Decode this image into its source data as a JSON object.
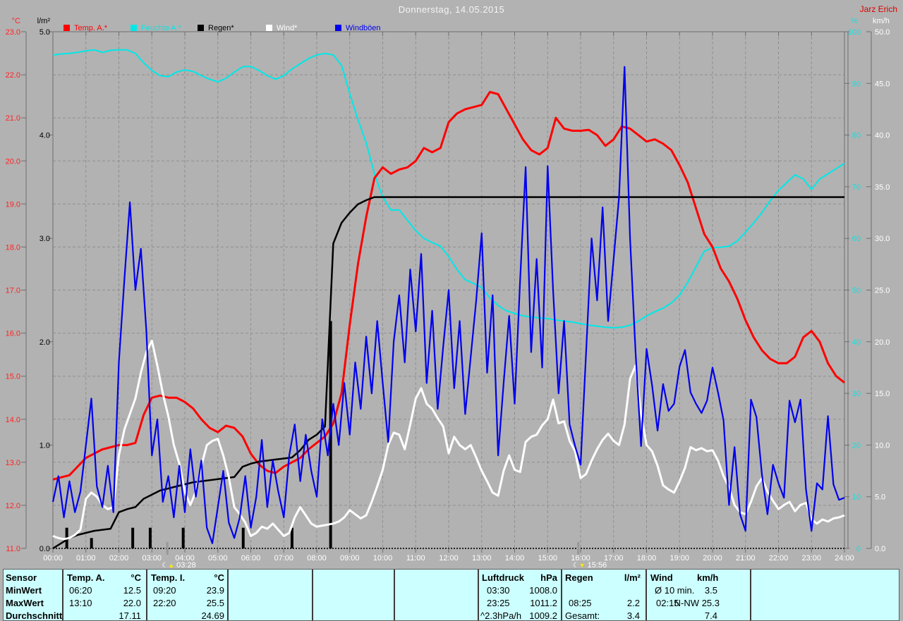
{
  "header": {
    "title": "Donnerstag, 14.05.2015",
    "author": "Jarz Erich"
  },
  "legend": {
    "items": [
      {
        "key": "temp-a",
        "label": "Temp. A.*",
        "color": "#ff0000"
      },
      {
        "key": "feuchte-a",
        "label": "Feuchte A.*",
        "color": "#00e8e8"
      },
      {
        "key": "regen",
        "label": "Regen*",
        "color": "#000000"
      },
      {
        "key": "wind",
        "label": "Wind*",
        "color": "#ffffff"
      },
      {
        "key": "windboeen",
        "label": "Windböen",
        "color": "#0000ee"
      }
    ]
  },
  "axis_headers": {
    "temp": "°C",
    "rain": "l/m²",
    "humidity": "%",
    "wind": "km/h"
  },
  "chart_data": {
    "type": "line",
    "title": "Donnerstag, 14.05.2015",
    "x_axis": {
      "unit": "h",
      "start": 0,
      "end": 24,
      "tick_labels": [
        "00:00",
        "01:00",
        "02:00",
        "03:00",
        "04:00",
        "05:00",
        "06:00",
        "07:00",
        "08:00",
        "09:00",
        "10:00",
        "11:00",
        "12:00",
        "13:00",
        "14:00",
        "15:00",
        "16:00",
        "17:00",
        "18:00",
        "19:00",
        "20:00",
        "21:00",
        "22:00",
        "23:00",
        "24:00"
      ]
    },
    "axes": {
      "temp": {
        "label": "°C",
        "min": 11,
        "max": 23,
        "tick_step": 1,
        "decimals": 1,
        "color": "#ff2222"
      },
      "rain": {
        "label": "l/m²",
        "min": 0,
        "max": 5,
        "tick_step": 1,
        "decimals": 1,
        "color": "#000000"
      },
      "humidity": {
        "label": "%",
        "min": 0,
        "max": 100,
        "tick_step": 10,
        "decimals": 0,
        "color": "#00e8e8"
      },
      "wind": {
        "label": "km/h",
        "min": 0,
        "max": 50,
        "tick_step": 5,
        "decimals": 1,
        "color": "#ffffff"
      }
    },
    "grid": {
      "vertical_every_h": 1,
      "horizontal_every_temp_deg": 1
    },
    "series": [
      {
        "key": "temp-a",
        "name": "Temp. A.",
        "unit": "°C",
        "axis": "temp",
        "color": "#ff0000",
        "interval_min": 15,
        "values": [
          12.6,
          12.65,
          12.7,
          12.9,
          13.1,
          13.2,
          13.3,
          13.35,
          13.4,
          13.4,
          13.45,
          14.1,
          14.5,
          14.55,
          14.5,
          14.5,
          14.4,
          14.25,
          14.0,
          13.8,
          13.7,
          13.85,
          13.8,
          13.6,
          13.2,
          12.95,
          12.8,
          12.75,
          12.9,
          13.0,
          13.1,
          13.3,
          13.45,
          13.6,
          13.9,
          14.6,
          16.2,
          17.6,
          18.7,
          19.6,
          19.85,
          19.7,
          19.8,
          19.85,
          20.0,
          20.3,
          20.2,
          20.3,
          20.9,
          21.1,
          21.2,
          21.25,
          21.3,
          21.6,
          21.55,
          21.2,
          20.85,
          20.5,
          20.25,
          20.15,
          20.3,
          21.0,
          20.75,
          20.7,
          20.7,
          20.72,
          20.6,
          20.35,
          20.5,
          20.8,
          20.75,
          20.6,
          20.45,
          20.5,
          20.4,
          20.25,
          19.9,
          19.5,
          18.9,
          18.3,
          18.0,
          17.5,
          17.2,
          16.8,
          16.3,
          15.9,
          15.6,
          15.4,
          15.3,
          15.3,
          15.45,
          15.9,
          16.05,
          15.8,
          15.3,
          15.0,
          14.85
        ]
      },
      {
        "key": "feuchte-a",
        "name": "Feuchte A.",
        "unit": "%",
        "axis": "humidity",
        "color": "#00e8e8",
        "interval_min": 15,
        "values": [
          95.5,
          95.7,
          95.8,
          96.0,
          96.3,
          96.5,
          96.0,
          96.4,
          96.5,
          96.5,
          95.8,
          94.0,
          92.5,
          91.5,
          91.3,
          92.2,
          92.6,
          92.3,
          91.5,
          90.8,
          90.3,
          91.0,
          92.2,
          93.2,
          93.3,
          92.5,
          91.5,
          90.8,
          91.5,
          92.8,
          93.8,
          94.8,
          95.5,
          95.8,
          95.5,
          93.5,
          88.0,
          83.0,
          78.5,
          72.5,
          68.0,
          65.5,
          65.5,
          63.5,
          61.5,
          60.0,
          59.2,
          58.5,
          56.5,
          54.0,
          52.0,
          51.3,
          50.5,
          48.5,
          47.0,
          46.0,
          45.5,
          45.0,
          44.8,
          44.6,
          44.5,
          44.2,
          44.0,
          43.8,
          43.5,
          43.2,
          43.0,
          42.8,
          42.7,
          42.8,
          43.2,
          44.0,
          45.0,
          45.8,
          46.5,
          47.5,
          49.0,
          51.5,
          54.5,
          57.5,
          58.2,
          58.3,
          58.5,
          59.5,
          61.2,
          63.0,
          65.0,
          67.3,
          69.3,
          70.8,
          72.3,
          71.5,
          69.5,
          71.5,
          72.5,
          73.5,
          74.5
        ]
      },
      {
        "key": "regen-summe",
        "name": "Regen (Summe)",
        "unit": "l/m²",
        "axis": "rain",
        "color": "#000000",
        "interval_min": 15,
        "values": [
          0.0,
          0.05,
          0.1,
          0.13,
          0.15,
          0.17,
          0.18,
          0.19,
          0.35,
          0.38,
          0.4,
          0.48,
          0.52,
          0.56,
          0.58,
          0.6,
          0.62,
          0.64,
          0.65,
          0.66,
          0.67,
          0.68,
          0.69,
          0.79,
          0.82,
          0.84,
          0.85,
          0.86,
          0.87,
          0.88,
          0.95,
          1.05,
          1.1,
          1.18,
          2.95,
          3.15,
          3.25,
          3.33,
          3.37,
          3.4,
          3.4,
          3.4,
          3.4,
          3.4,
          3.4,
          3.4,
          3.4,
          3.4,
          3.4,
          3.4,
          3.4,
          3.4,
          3.4,
          3.4,
          3.4,
          3.4,
          3.4,
          3.4,
          3.4,
          3.4,
          3.4,
          3.4,
          3.4,
          3.4,
          3.4,
          3.4,
          3.4,
          3.4,
          3.4,
          3.4,
          3.4,
          3.4,
          3.4,
          3.4,
          3.4,
          3.4,
          3.4,
          3.4,
          3.4,
          3.4,
          3.4,
          3.4,
          3.4,
          3.4,
          3.4,
          3.4,
          3.4,
          3.4,
          3.4,
          3.4,
          3.4,
          3.4,
          3.4,
          3.4,
          3.4,
          3.4,
          3.4
        ]
      },
      {
        "key": "wind",
        "name": "Wind",
        "unit": "km/h",
        "axis": "wind",
        "color": "#ffffff",
        "interval_min": 10,
        "values": [
          1.2,
          1.0,
          0.9,
          1.0,
          1.3,
          1.8,
          4.8,
          5.4,
          5.0,
          4.2,
          3.8,
          4.0,
          9.0,
          11.5,
          13.0,
          14.5,
          17.0,
          19.0,
          20.1,
          17.7,
          15.0,
          12.8,
          10.0,
          8.2,
          5.5,
          4.2,
          5.5,
          8.0,
          10.0,
          10.4,
          10.6,
          9.0,
          6.9,
          4.0,
          3.3,
          2.5,
          1.2,
          1.5,
          2.1,
          1.9,
          2.4,
          1.8,
          1.2,
          1.5,
          3.0,
          4.0,
          3.2,
          2.4,
          2.1,
          2.2,
          2.3,
          2.4,
          2.6,
          3.0,
          3.7,
          3.3,
          2.9,
          3.2,
          4.5,
          6.0,
          7.6,
          10.0,
          11.2,
          11.0,
          9.6,
          12.0,
          14.5,
          15.5,
          14.0,
          13.5,
          12.6,
          11.8,
          9.2,
          10.8,
          10.0,
          9.6,
          10.0,
          8.8,
          7.5,
          6.5,
          5.4,
          5.1,
          7.5,
          9.0,
          7.6,
          7.4,
          10.3,
          10.8,
          11.0,
          11.9,
          12.5,
          14.4,
          12.1,
          12.3,
          10.4,
          9.4,
          6.8,
          7.2,
          8.5,
          9.6,
          10.5,
          11.1,
          10.4,
          10.0,
          12.0,
          16.4,
          17.7,
          13.0,
          10.0,
          9.4,
          8.0,
          6.1,
          5.7,
          5.4,
          6.5,
          7.8,
          9.8,
          9.5,
          9.7,
          9.4,
          9.5,
          8.5,
          7.0,
          5.9,
          4.2,
          3.5,
          3.3,
          4.5,
          6.0,
          6.8,
          5.5,
          4.6,
          3.8,
          4.2,
          4.5,
          3.6,
          4.2,
          4.4,
          2.8,
          2.4,
          2.8,
          2.6,
          2.9,
          3.0,
          3.2
        ]
      },
      {
        "key": "windboeen",
        "name": "Windböen",
        "unit": "km/h",
        "axis": "wind",
        "color": "#0000ee",
        "interval_min": 10,
        "values": [
          4.5,
          7.0,
          3.0,
          6.5,
          3.5,
          5.5,
          10.0,
          14.5,
          6.0,
          4.0,
          8.0,
          3.5,
          18.0,
          26.0,
          33.5,
          25.0,
          29.0,
          21.0,
          9.0,
          12.5,
          4.5,
          7.0,
          3.0,
          8.0,
          3.5,
          9.6,
          5.0,
          8.5,
          2.0,
          0.5,
          4.0,
          7.5,
          2.5,
          1.0,
          3.0,
          7.0,
          2.0,
          5.0,
          10.5,
          4.0,
          8.5,
          5.5,
          3.0,
          9.0,
          12.0,
          6.5,
          11.0,
          7.5,
          5.0,
          12.5,
          9.0,
          14.0,
          10.0,
          16.0,
          11.0,
          18.0,
          13.5,
          20.5,
          15.0,
          22.0,
          16.0,
          10.3,
          20.0,
          24.5,
          18.0,
          27.0,
          21.0,
          28.5,
          16.0,
          23.0,
          13.5,
          19.5,
          25.0,
          15.5,
          22.0,
          13.0,
          18.5,
          24.0,
          30.5,
          17.0,
          24.5,
          9.0,
          16.0,
          22.5,
          14.0,
          26.0,
          36.9,
          19.0,
          28.0,
          17.5,
          37.0,
          25.0,
          15.0,
          22.0,
          12.0,
          9.9,
          8.1,
          19.0,
          30.0,
          24.0,
          33.0,
          22.0,
          28.0,
          34.0,
          46.6,
          30.0,
          19.0,
          9.9,
          19.3,
          15.8,
          11.4,
          15.9,
          13.3,
          14.0,
          17.6,
          19.2,
          15.1,
          14.0,
          13.1,
          14.3,
          17.5,
          15.1,
          12.4,
          4.2,
          9.8,
          3.3,
          1.7,
          14.4,
          12.7,
          7.1,
          3.3,
          8.1,
          6.3,
          4.9,
          14.3,
          12.2,
          14.4,
          5.7,
          1.7,
          6.3,
          5.7,
          12.8,
          6.2,
          4.7,
          4.9
        ]
      }
    ],
    "rain_bars": {
      "axis": "rain",
      "color": "#000000",
      "unit": "l/m²",
      "points": [
        [
          0.42,
          0.2
        ],
        [
          1.17,
          0.1
        ],
        [
          2.42,
          0.2
        ],
        [
          2.95,
          0.2
        ],
        [
          3.95,
          0.2
        ],
        [
          5.77,
          0.2
        ],
        [
          7.25,
          0.2
        ],
        [
          8.42,
          2.2
        ]
      ]
    },
    "markers": [
      {
        "label": "03:28",
        "hour": 3.47,
        "type": "moonrise"
      },
      {
        "label": "15:56",
        "hour": 15.93,
        "type": "moonset"
      }
    ]
  },
  "table": {
    "row_labels": [
      "Sensor",
      "MinWert",
      "MaxWert",
      "Durchschnitt"
    ],
    "temp_a": {
      "name": "Temp. A.",
      "unit": "°C",
      "min_time": "06:20",
      "min": "12.5",
      "max_time": "13:10",
      "max": "22.0",
      "avg": "17.11"
    },
    "temp_i": {
      "name": "Temp. I.",
      "unit": "°C",
      "min_time": "09:20",
      "min": "23.9",
      "max_time": "22:20",
      "max": "25.5",
      "avg": "24.69"
    },
    "luftdruck": {
      "name": "Luftdruck",
      "unit": "hPa",
      "min_time": "03:30",
      "min": "1008.0",
      "max_time": "23:25",
      "max": "1011.2",
      "avg_label": "^2.3hPa/h",
      "avg": "1009.2"
    },
    "regen": {
      "name": "Regen",
      "unit": "l/m²",
      "max_time": "08:25",
      "max": "2.2",
      "avg_label": "Gesamt:",
      "avg": "3.4"
    },
    "wind": {
      "name": "Wind",
      "unit": "km/h",
      "min_label": "Ø 10 min.",
      "min": "3.5",
      "max_time": "02:15",
      "max_dir": "N-NW",
      "max": "25.3",
      "avg": "7.4"
    }
  }
}
